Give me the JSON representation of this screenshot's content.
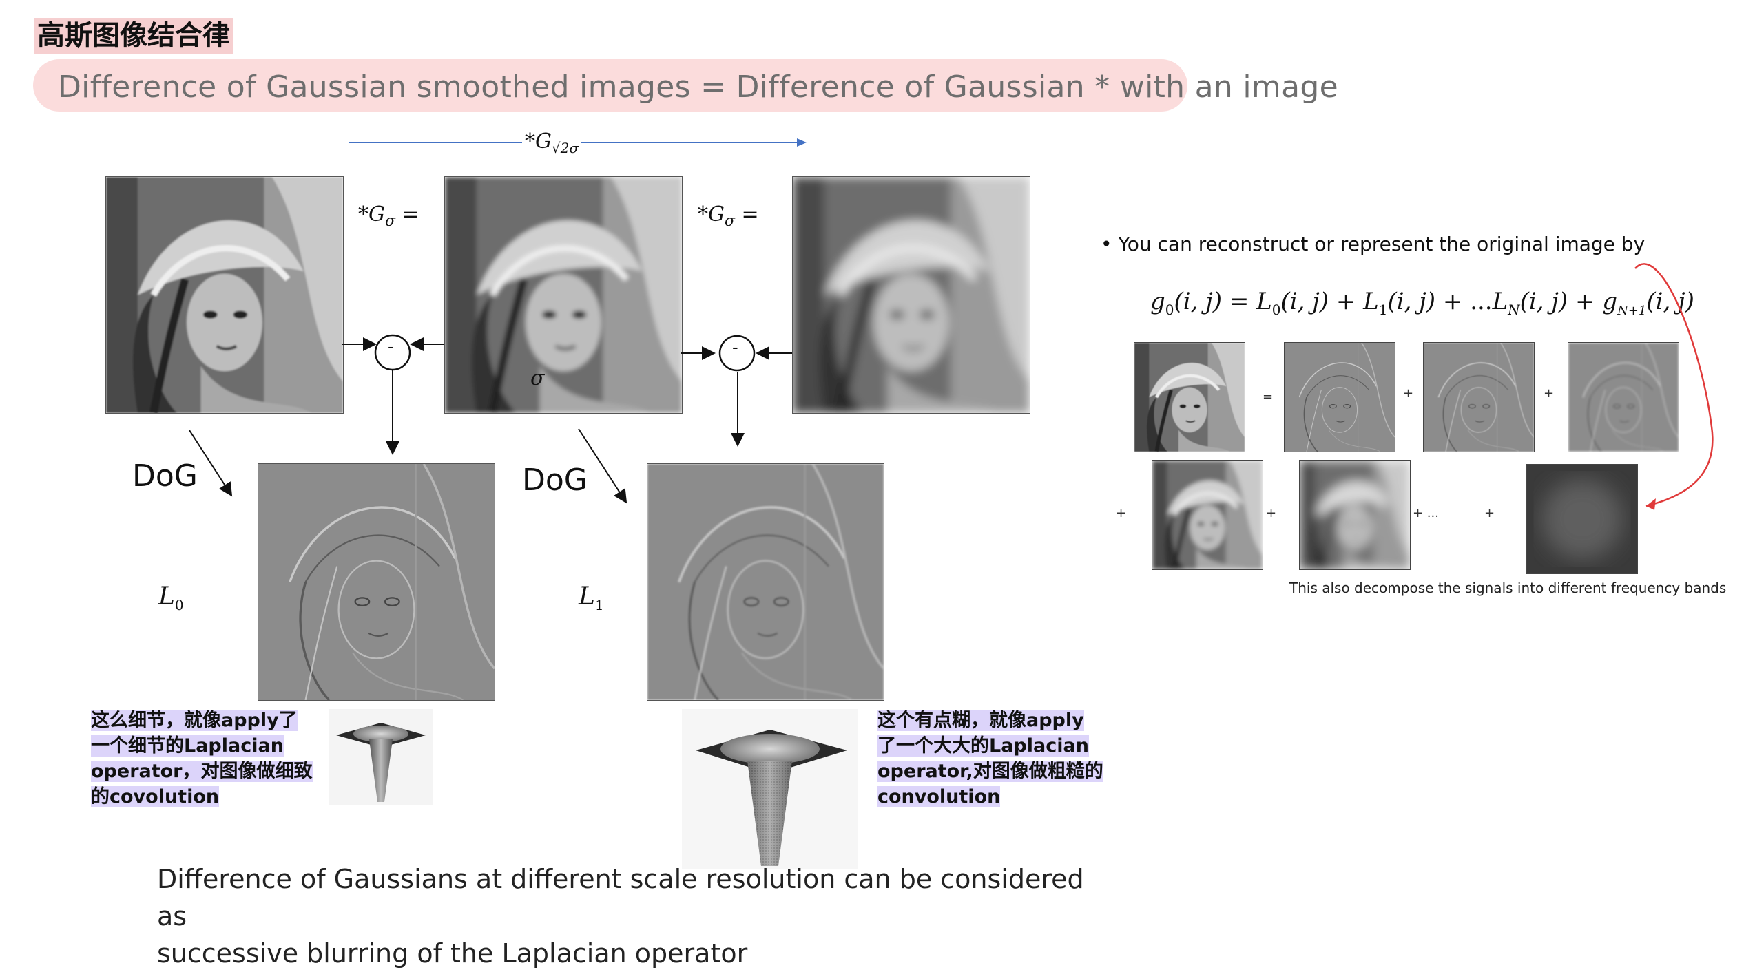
{
  "header": {
    "title_cn": "高斯图像结合律",
    "subtitle": "Difference of Gaussian smoothed images = Difference of Gaussian * with an image"
  },
  "pipeline": {
    "top_op_star": "*",
    "top_op_G": "G",
    "top_op_sub": "√2σ",
    "op1_prefix": "*",
    "op1_G": "G",
    "op1_sub": "σ",
    "op1_eq": " =",
    "op2_prefix": "*",
    "op2_G": "G",
    "op2_sub": "σ",
    "op2_eq": " =",
    "minus1": "-",
    "minus2": "-",
    "sigma_mark": "σ",
    "dog1": "DoG",
    "dog2": "DoG",
    "L0_L": "L",
    "L0_sub": "0",
    "L1_L": "L",
    "L1_sub": "1"
  },
  "notes": {
    "left_lines": [
      "这么细节，就像apply了",
      "一个细节的Laplacian",
      "operator，对图像做细致",
      "的covolution"
    ],
    "right_lines": [
      "这个有点糊，就像apply",
      "了一个大大的Laplacian",
      "operator,对图像做粗糙的",
      "convolution"
    ]
  },
  "caption_lines": [
    "Difference of Gaussians at different scale resolution can be considered as",
    "successive blurring of the Laplacian operator"
  ],
  "right_panel": {
    "bullet": "•",
    "bullet_text": "You can reconstruct or represent  the original image by",
    "formula": {
      "g": "g",
      "g_sub": "0",
      "args": "(i, j)",
      "eq": " = ",
      "L0": "L",
      "L0_sub": "0",
      "L0_args": "(i, j)",
      "plus1": " + ",
      "L1": "L",
      "L1_sub": "1",
      "L1_args": "(i, j)",
      "plus2": " + ...",
      "LN": "L",
      "LN_sub": "N",
      "LN_args": "(i, j)",
      "plus3": " + ",
      "gN": "g",
      "gN_sub": "N+1",
      "gN_args": "(i, j)"
    },
    "ops_row1": [
      "=",
      "+",
      "+"
    ],
    "ops_row2": [
      "+",
      "+",
      "+ ...",
      "+"
    ],
    "freq_caption": "This also decompose the signals into different frequency bands"
  },
  "colors": {
    "subtitle_bg": "#fbdcdc",
    "title_bg": "#f6cfd0",
    "note_highlight": "#dcd4fa",
    "blue_arrow": "#4472c4",
    "red_arrow": "#e03a3a"
  }
}
